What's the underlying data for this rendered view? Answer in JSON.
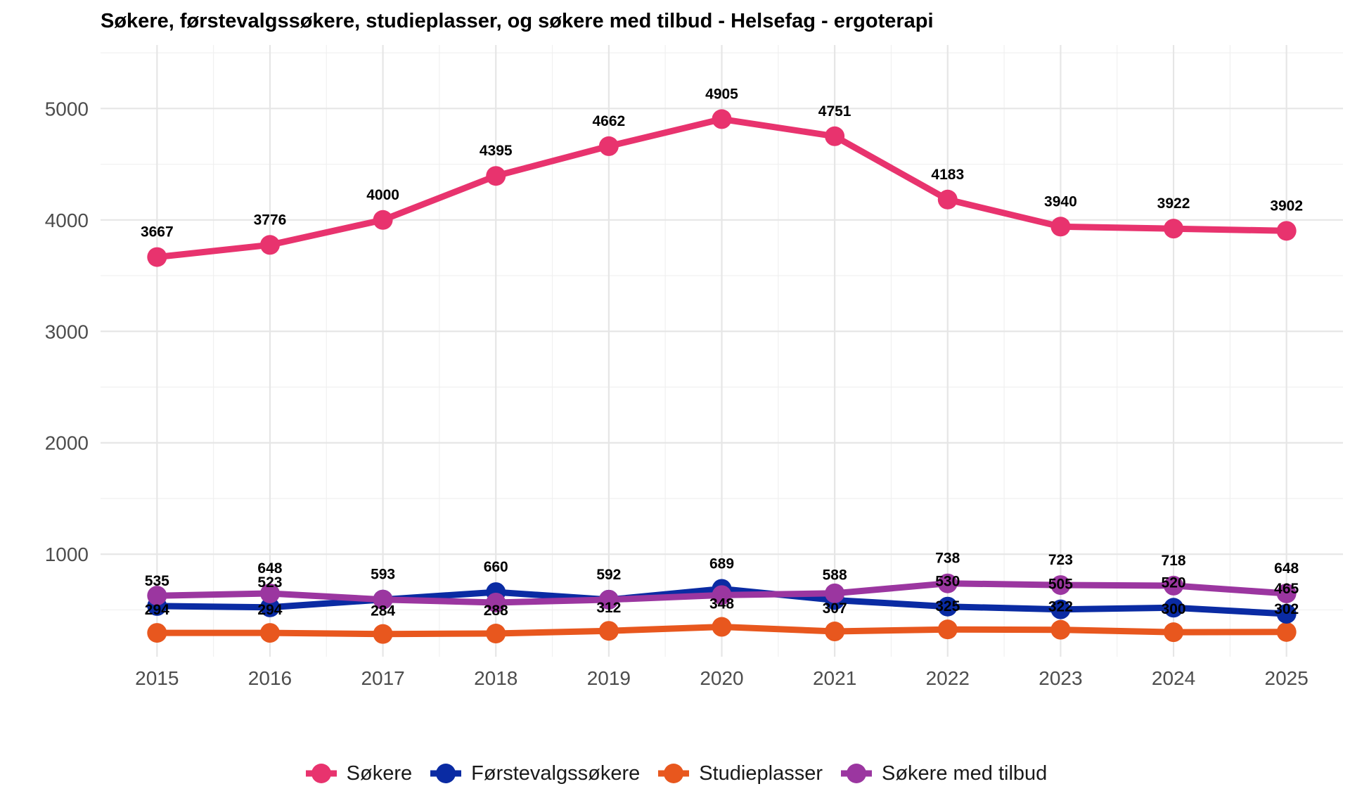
{
  "chart_data": {
    "type": "line",
    "title": "Søkere, førstevalgssøkere, studieplasser, og søkere med tilbud - Helsefag - ergoterapi",
    "xlabel": "",
    "ylabel": "",
    "x": [
      2015,
      2016,
      2017,
      2018,
      2019,
      2020,
      2021,
      2022,
      2023,
      2024,
      2025
    ],
    "x_tick_labels": [
      "2015",
      "2016",
      "2017",
      "2018",
      "2019",
      "2020",
      "2021",
      "2022",
      "2023",
      "2024",
      "2025"
    ],
    "y_ticks": [
      1000,
      2000,
      3000,
      4000,
      5000
    ],
    "y_tick_labels": [
      "1000",
      "2000",
      "3000",
      "4000",
      "5000"
    ],
    "ylim": [
      80,
      5570
    ],
    "grid": true,
    "legend_position": "bottom",
    "series": [
      {
        "name": "Søkere",
        "color": "#E8336E",
        "values": [
          3667,
          3776,
          4000,
          4395,
          4662,
          4905,
          4751,
          4183,
          3940,
          3922,
          3902
        ]
      },
      {
        "name": "Førstevalgssøkere",
        "color": "#0A2BA3",
        "values": [
          535,
          523,
          593,
          660,
          592,
          689,
          588,
          530,
          505,
          520,
          465
        ]
      },
      {
        "name": "Studieplasser",
        "color": "#E8571E",
        "values": [
          294,
          294,
          284,
          288,
          312,
          348,
          307,
          325,
          322,
          300,
          302
        ]
      },
      {
        "name": "Søkere med tilbud",
        "color": "#9B36A0",
        "values": [
          628,
          648,
          593,
          566,
          592,
          633,
          649,
          738,
          723,
          718,
          648
        ]
      }
    ],
    "annotations": [
      {
        "series": 0,
        "labels": [
          "3667",
          "3776",
          "4000",
          "4395",
          "4662",
          "4905",
          "4751",
          "4183",
          "3940",
          "3922",
          "3902"
        ]
      },
      {
        "series": 1,
        "labels": [
          "535",
          "523",
          "593",
          "660",
          "592",
          "689",
          "588",
          "530",
          "505",
          "520",
          "465"
        ]
      },
      {
        "series": 2,
        "labels": [
          "294",
          "294",
          "284",
          "288",
          "312",
          "348",
          "307",
          "325",
          "322",
          "300",
          "302"
        ]
      },
      {
        "series": 3,
        "labels": [
          "",
          "648",
          "",
          "",
          "",
          "",
          "",
          "738",
          "723",
          "718",
          "648"
        ]
      }
    ]
  }
}
